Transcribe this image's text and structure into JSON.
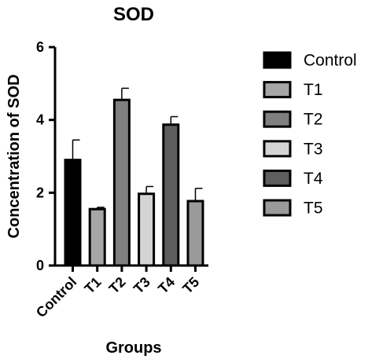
{
  "chart_data": {
    "type": "bar",
    "title": "SOD",
    "xlabel": "Groups",
    "ylabel": "Concentration of SOD",
    "categories": [
      "Control",
      "T1",
      "T2",
      "T3",
      "T4",
      "T5"
    ],
    "values": [
      2.9,
      1.55,
      4.55,
      1.97,
      3.87,
      1.77
    ],
    "errors": [
      0.55,
      0.05,
      0.32,
      0.2,
      0.22,
      0.35
    ],
    "colors": [
      "#000000",
      "#a6a6a6",
      "#7f7f7f",
      "#d4d4d4",
      "#5e5e5e",
      "#9a9a9a"
    ],
    "ylim": [
      0,
      6
    ],
    "yticks": [
      0,
      2,
      4,
      6
    ],
    "legend": [
      "Control",
      "T1",
      "T2",
      "T3",
      "T4",
      "T5"
    ],
    "legend_position": "right",
    "grid": false
  }
}
